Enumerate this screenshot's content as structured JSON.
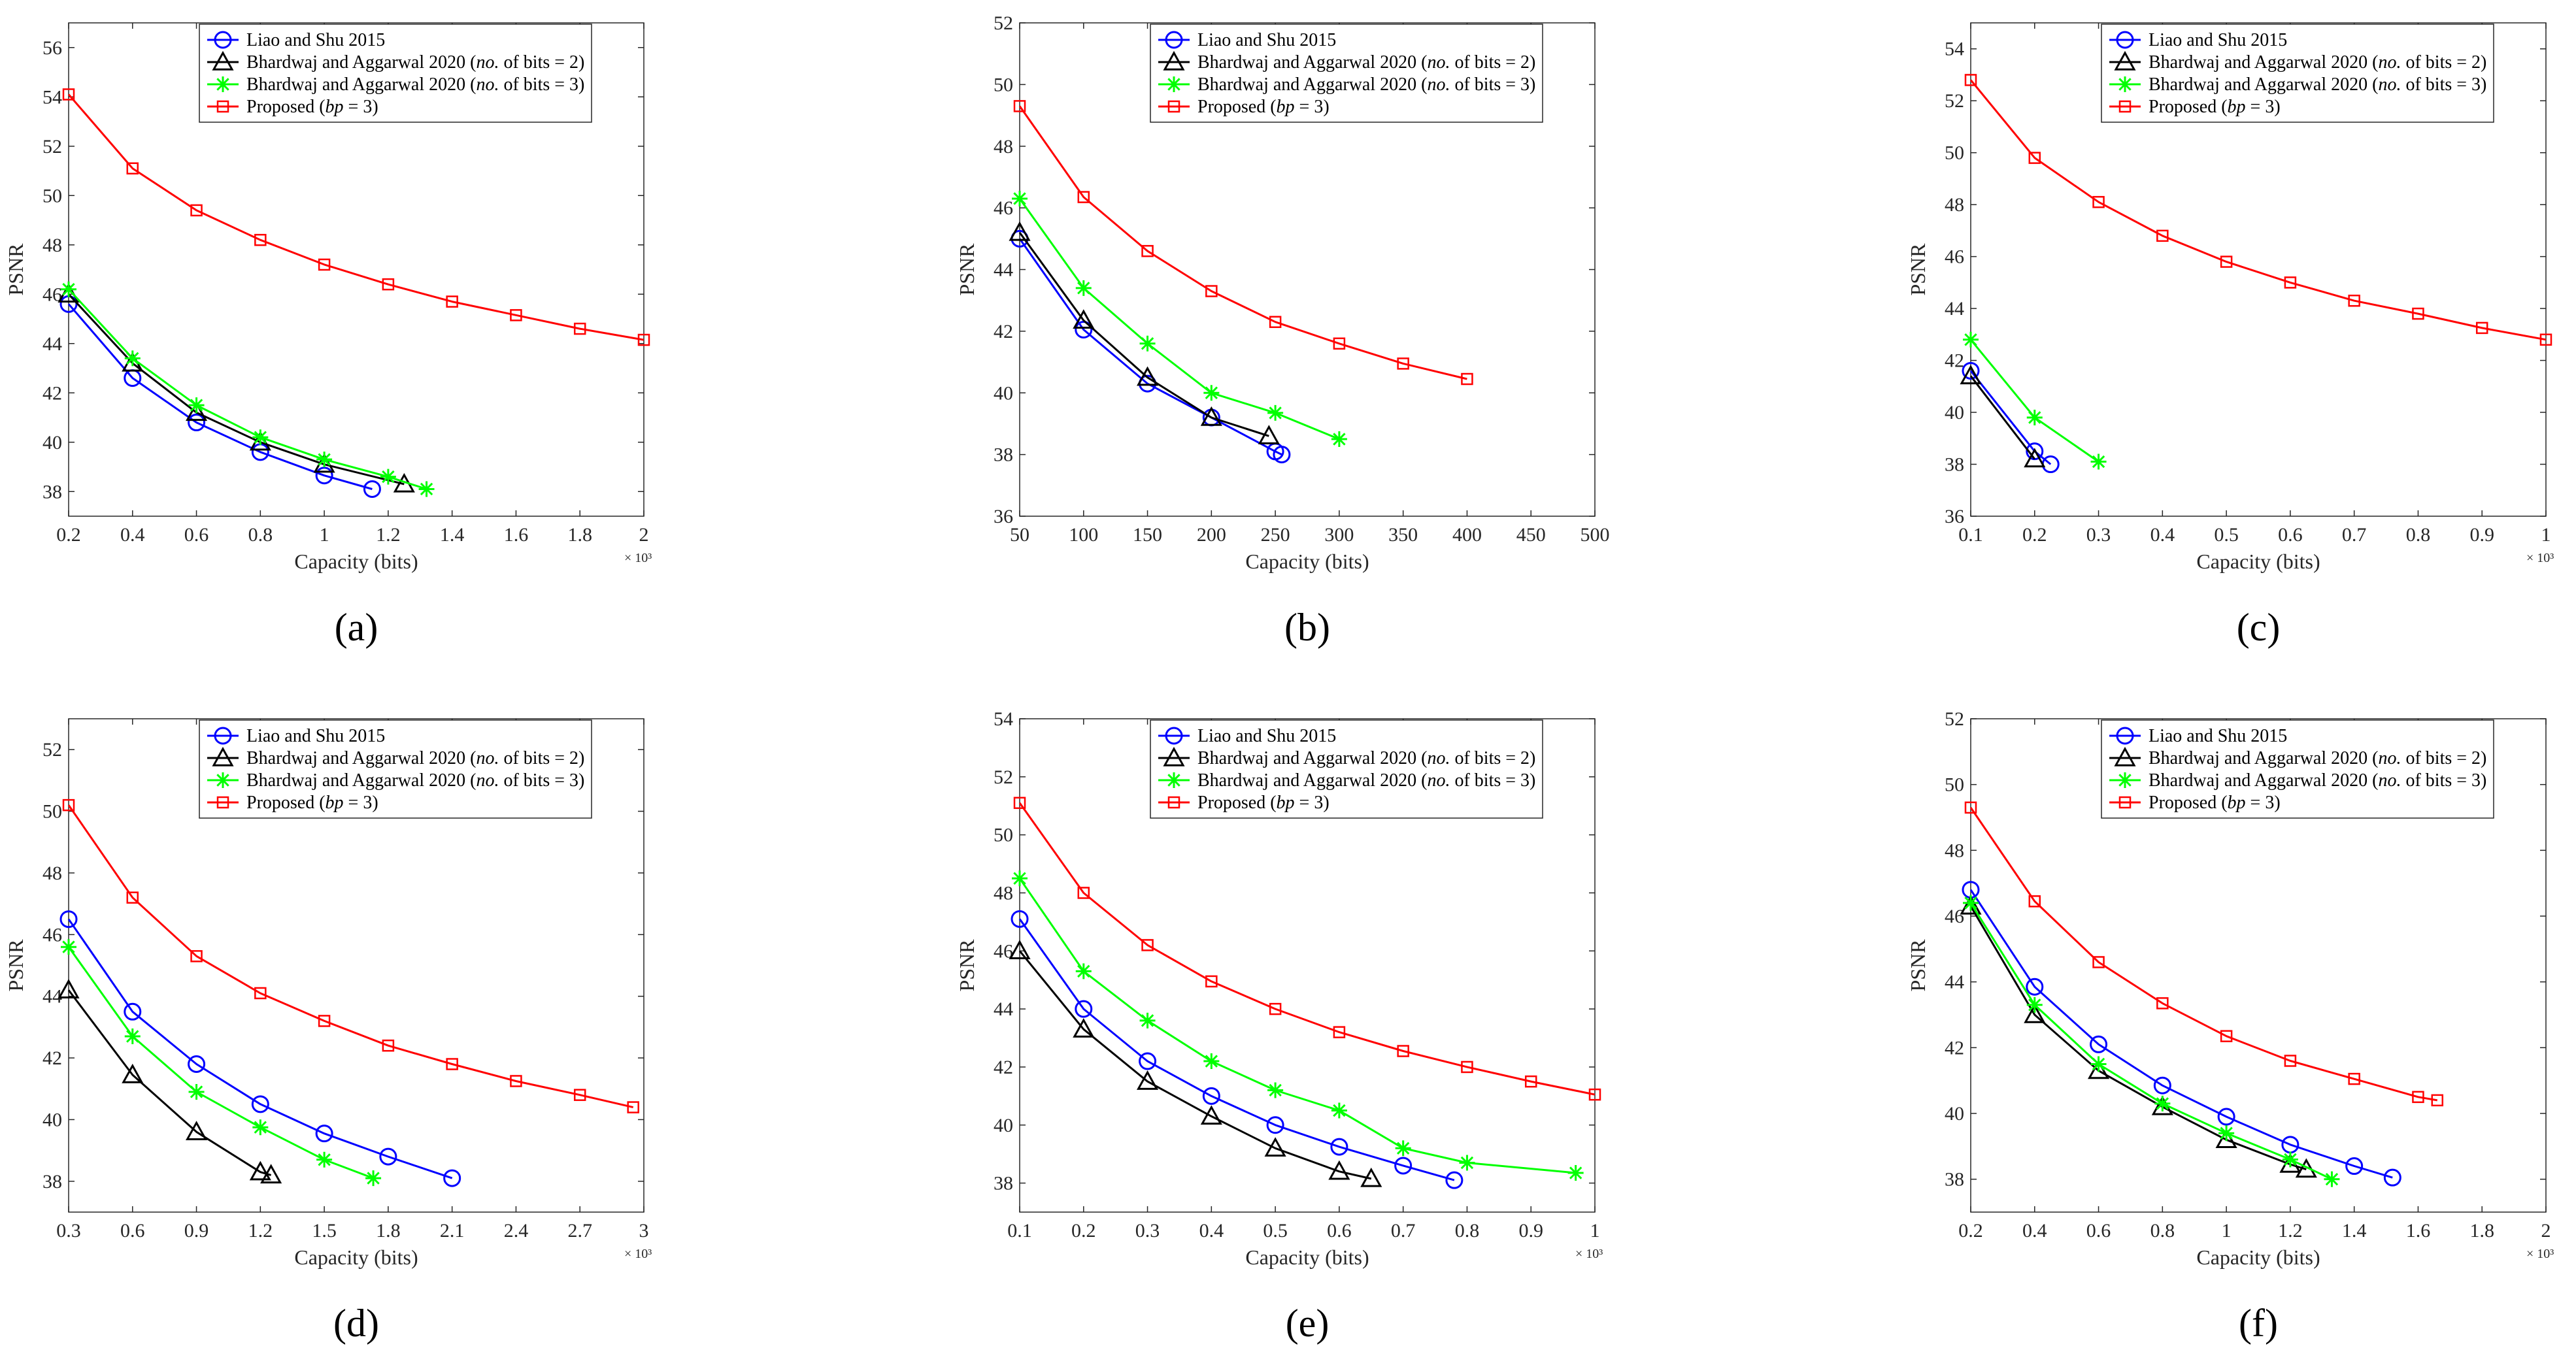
{
  "figure": {
    "legend_labels": {
      "liao": "Liao and Shu 2015",
      "bh2_prefix": "Bhardwaj and Aggarwal 2020 (",
      "bh2_italic": "no.",
      "bh2_suffix": " of bits = 2)",
      "bh3_prefix": "Bhardwaj and Aggarwal 2020 (",
      "bh3_italic": "no.",
      "bh3_suffix": " of bits = 3)",
      "prop_prefix": "Proposed (",
      "prop_italic": "bp",
      "prop_suffix": " = 3)"
    },
    "colors": {
      "liao": "#0000ff",
      "bh2": "#000000",
      "bh3": "#00ff00",
      "proposed": "#ff0000"
    },
    "markers": {
      "liao": "circle",
      "bh2": "triangle",
      "bh3": "asterisk",
      "proposed": "square"
    }
  },
  "chart_data": [
    {
      "panel_label": "(a)",
      "type": "line",
      "xlabel": "Capacity (bits)",
      "ylabel": "PSNR",
      "x_multiplier": "× 10³",
      "xlim": [
        0.2,
        2.0
      ],
      "ylim": [
        37,
        57
      ],
      "xticks": [
        "0.2",
        "0.4",
        "0.6",
        "0.8",
        "1",
        "1.2",
        "1.4",
        "1.6",
        "1.8",
        "2"
      ],
      "xtick_values": [
        0.2,
        0.4,
        0.6,
        0.8,
        1.0,
        1.2,
        1.4,
        1.6,
        1.8,
        2.0
      ],
      "yticks": [
        "38",
        "40",
        "42",
        "44",
        "46",
        "48",
        "50",
        "52",
        "54",
        "56"
      ],
      "ytick_values": [
        38,
        40,
        42,
        44,
        46,
        48,
        50,
        52,
        54,
        56
      ],
      "series": [
        {
          "key": "liao",
          "x": [
            0.2,
            0.4,
            0.6,
            0.8,
            1.0,
            1.15
          ],
          "y": [
            45.6,
            42.6,
            40.8,
            39.6,
            38.65,
            38.1
          ]
        },
        {
          "key": "bh2",
          "x": [
            0.2,
            0.4,
            0.6,
            0.8,
            1.0,
            1.25
          ],
          "y": [
            46.0,
            43.2,
            41.2,
            40.0,
            39.1,
            38.3
          ]
        },
        {
          "key": "bh3",
          "x": [
            0.2,
            0.4,
            0.6,
            0.8,
            1.0,
            1.2,
            1.32
          ],
          "y": [
            46.2,
            43.4,
            41.5,
            40.2,
            39.3,
            38.6,
            38.1
          ]
        },
        {
          "key": "proposed",
          "x": [
            0.2,
            0.4,
            0.6,
            0.8,
            1.0,
            1.2,
            1.4,
            1.6,
            1.8,
            2.0
          ],
          "y": [
            54.1,
            51.1,
            49.4,
            48.2,
            47.2,
            46.4,
            45.7,
            45.15,
            44.6,
            44.15
          ]
        }
      ]
    },
    {
      "panel_label": "(b)",
      "type": "line",
      "xlabel": "Capacity (bits)",
      "ylabel": "PSNR",
      "x_multiplier": "",
      "xlim": [
        50,
        500
      ],
      "ylim": [
        36,
        52
      ],
      "xticks": [
        "50",
        "100",
        "150",
        "200",
        "250",
        "300",
        "350",
        "400",
        "450",
        "500"
      ],
      "xtick_values": [
        50,
        100,
        150,
        200,
        250,
        300,
        350,
        400,
        450,
        500
      ],
      "yticks": [
        "36",
        "38",
        "40",
        "42",
        "44",
        "46",
        "48",
        "50",
        "52"
      ],
      "ytick_values": [
        36,
        38,
        40,
        42,
        44,
        46,
        48,
        50,
        52
      ],
      "series": [
        {
          "key": "liao",
          "x": [
            50,
            100,
            150,
            200,
            250,
            255
          ],
          "y": [
            45.0,
            42.05,
            40.3,
            39.2,
            38.1,
            38.0
          ]
        },
        {
          "key": "bh2",
          "x": [
            50,
            100,
            150,
            200,
            245
          ],
          "y": [
            45.2,
            42.35,
            40.5,
            39.2,
            38.6
          ]
        },
        {
          "key": "bh3",
          "x": [
            50,
            100,
            150,
            200,
            250,
            300
          ],
          "y": [
            46.3,
            43.4,
            41.6,
            40.0,
            39.35,
            38.5
          ]
        },
        {
          "key": "proposed",
          "x": [
            50,
            100,
            150,
            200,
            250,
            300,
            350,
            400
          ],
          "y": [
            49.3,
            46.35,
            44.6,
            43.3,
            42.3,
            41.6,
            40.95,
            40.45
          ]
        }
      ]
    },
    {
      "panel_label": "(c)",
      "type": "line",
      "xlabel": "Capacity (bits)",
      "ylabel": "PSNR",
      "x_multiplier": "× 10³",
      "xlim": [
        0.1,
        1.0
      ],
      "ylim": [
        36,
        55
      ],
      "xticks": [
        "0.1",
        "0.2",
        "0.3",
        "0.4",
        "0.5",
        "0.6",
        "0.7",
        "0.8",
        "0.9",
        "1"
      ],
      "xtick_values": [
        0.1,
        0.2,
        0.3,
        0.4,
        0.5,
        0.6,
        0.7,
        0.8,
        0.9,
        1.0
      ],
      "yticks": [
        "36",
        "38",
        "40",
        "42",
        "44",
        "46",
        "48",
        "50",
        "52",
        "54"
      ],
      "ytick_values": [
        36,
        38,
        40,
        42,
        44,
        46,
        48,
        50,
        52,
        54
      ],
      "series": [
        {
          "key": "liao",
          "x": [
            0.1,
            0.2,
            0.225
          ],
          "y": [
            41.6,
            38.5,
            38.0
          ]
        },
        {
          "key": "bh2",
          "x": [
            0.1,
            0.2
          ],
          "y": [
            41.4,
            38.2
          ]
        },
        {
          "key": "bh3",
          "x": [
            0.1,
            0.2,
            0.3
          ],
          "y": [
            42.8,
            39.8,
            38.1
          ]
        },
        {
          "key": "proposed",
          "x": [
            0.1,
            0.2,
            0.3,
            0.4,
            0.5,
            0.6,
            0.7,
            0.8,
            0.9,
            1.0
          ],
          "y": [
            52.8,
            49.8,
            48.1,
            46.8,
            45.8,
            45.0,
            44.3,
            43.8,
            43.25,
            42.8
          ]
        }
      ]
    },
    {
      "panel_label": "(d)",
      "type": "line",
      "xlabel": "Capacity (bits)",
      "ylabel": "PSNR",
      "x_multiplier": "× 10³",
      "xlim": [
        0.3,
        3.0
      ],
      "ylim": [
        37,
        53
      ],
      "xticks": [
        "0.3",
        "0.6",
        "0.9",
        "1.2",
        "1.5",
        "1.8",
        "2.1",
        "2.4",
        "2.7",
        "3"
      ],
      "xtick_values": [
        0.3,
        0.6,
        0.9,
        1.2,
        1.5,
        1.8,
        2.1,
        2.4,
        2.7,
        3.0
      ],
      "yticks": [
        "38",
        "40",
        "42",
        "44",
        "46",
        "48",
        "50",
        "52"
      ],
      "ytick_values": [
        38,
        40,
        42,
        44,
        46,
        48,
        50,
        52
      ],
      "series": [
        {
          "key": "liao",
          "x": [
            0.3,
            0.6,
            0.9,
            1.2,
            1.5,
            1.8,
            2.1
          ],
          "y": [
            46.5,
            43.5,
            41.8,
            40.5,
            39.55,
            38.8,
            38.1
          ]
        },
        {
          "key": "bh2",
          "x": [
            0.3,
            0.6,
            0.9,
            1.2,
            1.25
          ],
          "y": [
            44.2,
            41.45,
            39.6,
            38.3,
            38.2
          ]
        },
        {
          "key": "bh3",
          "x": [
            0.3,
            0.6,
            0.9,
            1.2,
            1.5,
            1.73
          ],
          "y": [
            45.6,
            42.7,
            40.9,
            39.75,
            38.7,
            38.1
          ]
        },
        {
          "key": "proposed",
          "x": [
            0.3,
            0.6,
            0.9,
            1.2,
            1.5,
            1.8,
            2.1,
            2.4,
            2.7,
            2.95
          ],
          "y": [
            50.2,
            47.2,
            45.3,
            44.1,
            43.2,
            42.4,
            41.8,
            41.25,
            40.8,
            40.4
          ]
        }
      ]
    },
    {
      "panel_label": "(e)",
      "type": "line",
      "xlabel": "Capacity (bits)",
      "ylabel": "PSNR",
      "x_multiplier": "× 10³",
      "xlim": [
        0.1,
        1.0
      ],
      "ylim": [
        37,
        54
      ],
      "xticks": [
        "0.1",
        "0.2",
        "0.3",
        "0.4",
        "0.5",
        "0.6",
        "0.7",
        "0.8",
        "0.9",
        "1"
      ],
      "xtick_values": [
        0.1,
        0.2,
        0.3,
        0.4,
        0.5,
        0.6,
        0.7,
        0.8,
        0.9,
        1.0
      ],
      "yticks": [
        "38",
        "40",
        "42",
        "44",
        "46",
        "48",
        "50",
        "52",
        "54"
      ],
      "ytick_values": [
        38,
        40,
        42,
        44,
        46,
        48,
        50,
        52,
        54
      ],
      "series": [
        {
          "key": "liao",
          "x": [
            0.1,
            0.2,
            0.3,
            0.4,
            0.5,
            0.6,
            0.7,
            0.78
          ],
          "y": [
            47.1,
            44.0,
            42.2,
            41.0,
            40.0,
            39.25,
            38.6,
            38.1
          ]
        },
        {
          "key": "bh2",
          "x": [
            0.1,
            0.2,
            0.3,
            0.4,
            0.5,
            0.6,
            0.65
          ],
          "y": [
            46.0,
            43.3,
            41.5,
            40.3,
            39.2,
            38.4,
            38.15
          ]
        },
        {
          "key": "bh3",
          "x": [
            0.1,
            0.2,
            0.3,
            0.4,
            0.5,
            0.6,
            0.7,
            0.8,
            0.97
          ],
          "y": [
            48.5,
            45.3,
            43.6,
            42.2,
            41.2,
            40.5,
            39.2,
            38.7,
            38.35
          ]
        },
        {
          "key": "proposed",
          "x": [
            0.1,
            0.2,
            0.3,
            0.4,
            0.5,
            0.6,
            0.7,
            0.8,
            0.9,
            1.0
          ],
          "y": [
            51.1,
            48.0,
            46.2,
            44.95,
            44.0,
            43.2,
            42.55,
            42.0,
            41.5,
            41.05
          ]
        }
      ]
    },
    {
      "panel_label": "(f)",
      "type": "line",
      "xlabel": "Capacity (bits)",
      "ylabel": "PSNR",
      "x_multiplier": "× 10³",
      "xlim": [
        0.2,
        2.0
      ],
      "ylim": [
        37,
        52
      ],
      "xticks": [
        "0.2",
        "0.4",
        "0.6",
        "0.8",
        "1",
        "1.2",
        "1.4",
        "1.6",
        "1.8",
        "2"
      ],
      "xtick_values": [
        0.2,
        0.4,
        0.6,
        0.8,
        1.0,
        1.2,
        1.4,
        1.6,
        1.8,
        2.0
      ],
      "yticks": [
        "38",
        "40",
        "42",
        "44",
        "46",
        "48",
        "50",
        "52"
      ],
      "ytick_values": [
        38,
        40,
        42,
        44,
        46,
        48,
        50,
        52
      ],
      "series": [
        {
          "key": "liao",
          "x": [
            0.2,
            0.4,
            0.6,
            0.8,
            1.0,
            1.2,
            1.4,
            1.52
          ],
          "y": [
            46.8,
            43.85,
            42.1,
            40.85,
            39.9,
            39.05,
            38.4,
            38.05
          ]
        },
        {
          "key": "bh2",
          "x": [
            0.2,
            0.4,
            0.6,
            0.8,
            1.0,
            1.2,
            1.25
          ],
          "y": [
            46.3,
            43.0,
            41.3,
            40.2,
            39.2,
            38.45,
            38.3
          ]
        },
        {
          "key": "bh3",
          "x": [
            0.2,
            0.4,
            0.6,
            0.8,
            1.0,
            1.2,
            1.33
          ],
          "y": [
            46.4,
            43.3,
            41.5,
            40.3,
            39.4,
            38.6,
            38.0
          ]
        },
        {
          "key": "proposed",
          "x": [
            0.2,
            0.4,
            0.6,
            0.8,
            1.0,
            1.2,
            1.4,
            1.6,
            1.66
          ],
          "y": [
            49.3,
            46.45,
            44.6,
            43.35,
            42.35,
            41.6,
            41.05,
            40.5,
            40.4
          ]
        }
      ]
    }
  ]
}
